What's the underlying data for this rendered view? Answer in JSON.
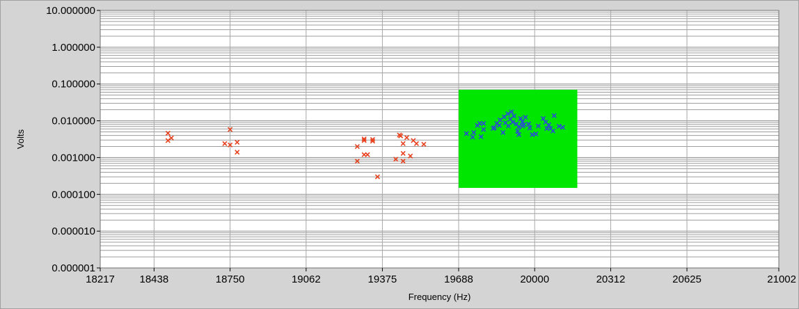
{
  "chart_data": {
    "type": "scatter",
    "title": "",
    "xlabel": "Frequency (Hz)",
    "ylabel": "Volts",
    "xlim": [
      18217,
      21002
    ],
    "ylim": [
      1e-06,
      10
    ],
    "yscale": "log",
    "grid": true,
    "x_ticks": [
      "18217",
      "18438",
      "18750",
      "19062",
      "19375",
      "19688",
      "20000",
      "20312",
      "20625",
      "21002"
    ],
    "y_ticks": [
      "10.000000",
      "1.000000",
      "0.100000",
      "0.010000",
      "0.001000",
      "0.000100",
      "0.000010",
      "0.000001"
    ],
    "highlight_region": {
      "x": [
        19688,
        20175
      ],
      "y": [
        0.00015,
        0.07
      ],
      "color": "#00e600"
    },
    "series": [
      {
        "color": "#e8401c",
        "marker": "x",
        "points": [
          [
            18495,
            0.0046
          ],
          [
            18495,
            0.0029
          ],
          [
            18509,
            0.0034
          ],
          [
            18728,
            0.0024
          ],
          [
            18750,
            0.0058
          ],
          [
            18750,
            0.0022
          ],
          [
            18779,
            0.0026
          ],
          [
            18779,
            0.0014
          ],
          [
            19272,
            0.002
          ],
          [
            19272,
            0.0008
          ],
          [
            19300,
            0.0032
          ],
          [
            19300,
            0.0029
          ],
          [
            19300,
            0.0012
          ],
          [
            19314,
            0.0012
          ],
          [
            19335,
            0.0031
          ],
          [
            19335,
            0.0028
          ],
          [
            19355,
            0.0003
          ],
          [
            19430,
            0.0009
          ],
          [
            19445,
            0.0041
          ],
          [
            19450,
            0.0039
          ],
          [
            19460,
            0.0024
          ],
          [
            19460,
            0.0013
          ],
          [
            19460,
            0.0008
          ],
          [
            19475,
            0.0035
          ],
          [
            19490,
            0.0011
          ],
          [
            19502,
            0.0029
          ],
          [
            19515,
            0.0024
          ],
          [
            19545,
            0.0023
          ]
        ]
      },
      {
        "color": "#2a4bd7",
        "marker": "x",
        "points": [
          [
            19720,
            0.0045
          ],
          [
            19745,
            0.0036
          ],
          [
            19750,
            0.0048
          ],
          [
            19765,
            0.0075
          ],
          [
            19775,
            0.0085
          ],
          [
            19780,
            0.0037
          ],
          [
            19790,
            0.0058
          ],
          [
            19790,
            0.0085
          ],
          [
            19830,
            0.0062
          ],
          [
            19835,
            0.0065
          ],
          [
            19845,
            0.0085
          ],
          [
            19855,
            0.0075
          ],
          [
            19858,
            0.0105
          ],
          [
            19870,
            0.0048
          ],
          [
            19875,
            0.0128
          ],
          [
            19880,
            0.0088
          ],
          [
            19890,
            0.0155
          ],
          [
            19892,
            0.0072
          ],
          [
            19900,
            0.0112
          ],
          [
            19905,
            0.0175
          ],
          [
            19910,
            0.0092
          ],
          [
            19915,
            0.0135
          ],
          [
            19925,
            0.0082
          ],
          [
            19930,
            0.0052
          ],
          [
            19935,
            0.0068
          ],
          [
            19935,
            0.0042
          ],
          [
            19942,
            0.0115
          ],
          [
            19950,
            0.0072
          ],
          [
            19950,
            0.0094
          ],
          [
            19955,
            0.0078
          ],
          [
            19962,
            0.0125
          ],
          [
            19975,
            0.0082
          ],
          [
            19980,
            0.0064
          ],
          [
            19990,
            0.0042
          ],
          [
            20005,
            0.0044
          ],
          [
            20015,
            0.0072
          ],
          [
            20035,
            0.0115
          ],
          [
            20045,
            0.0092
          ],
          [
            20050,
            0.0062
          ],
          [
            20058,
            0.0078
          ],
          [
            20065,
            0.0062
          ],
          [
            20075,
            0.0053
          ],
          [
            20080,
            0.0138
          ],
          [
            20100,
            0.0071
          ],
          [
            20115,
            0.0066
          ]
        ]
      }
    ]
  }
}
